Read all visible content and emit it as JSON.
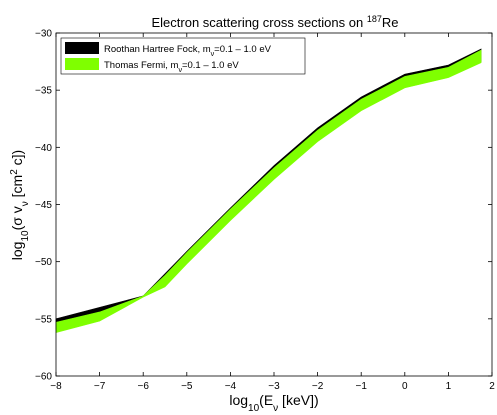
{
  "chart_data": {
    "type": "area",
    "title": "Electron scattering cross sections on ",
    "title_superscript": "187",
    "title_suffix": "Re",
    "xlabel": "log",
    "xlabel_sub": "10",
    "xlabel_rest": "(E",
    "xlabel_sub2": "ν",
    "xlabel_end": " [keV])",
    "ylabel": "log",
    "ylabel_sub": "10",
    "ylabel_rest": "(σ v",
    "ylabel_sub2": "ν",
    "ylabel_mid": " [cm",
    "ylabel_sup": "2",
    "ylabel_end": " c])",
    "xlim": [
      -8,
      2
    ],
    "ylim": [
      -60,
      -30
    ],
    "xticks": [
      -8,
      -7,
      -6,
      -5,
      -4,
      -3,
      -2,
      -1,
      0,
      1,
      2
    ],
    "yticks": [
      -60,
      -55,
      -50,
      -45,
      -40,
      -35,
      -30
    ],
    "grid": false,
    "legend_position": "top-left",
    "series": [
      {
        "name": "Roothan Hartree Fock, m",
        "name_sub": "ν",
        "name_rest": "=0.1 – 1.0 eV",
        "color": "#000000",
        "x": [
          -8,
          -6,
          -5,
          -4,
          -3,
          -2,
          -1,
          0,
          1,
          1.75
        ],
        "upper": [
          -55.0,
          -53.0,
          -49.1,
          -45.3,
          -41.6,
          -38.3,
          -35.6,
          -33.6,
          -32.8,
          -31.4
        ],
        "lower": [
          -55.9,
          -53.0,
          -50.0,
          -46.2,
          -42.5,
          -39.2,
          -36.5,
          -34.5,
          -33.7,
          -32.5
        ]
      },
      {
        "name": "Thomas Fermi, m",
        "name_sub": "ν",
        "name_rest": "=0.1 – 1.0 eV",
        "color": "#7fff00",
        "x": [
          -8,
          -7,
          -6,
          -5.5,
          -5,
          -4,
          -3,
          -2,
          -1,
          0,
          1,
          1.75
        ],
        "upper": [
          -55.3,
          -54.4,
          -53.0,
          -51.2,
          -49.2,
          -45.4,
          -41.8,
          -38.5,
          -35.8,
          -33.8,
          -33.0,
          -31.5
        ],
        "lower": [
          -56.2,
          -55.2,
          -53.1,
          -52.2,
          -50.2,
          -46.4,
          -42.8,
          -39.5,
          -36.8,
          -34.8,
          -33.9,
          -32.6
        ]
      }
    ]
  }
}
